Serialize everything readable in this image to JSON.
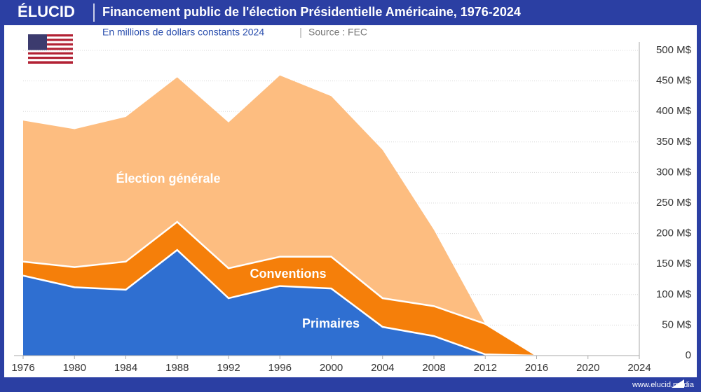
{
  "brand": "ÉLUCID",
  "footer": "www.elucid.media",
  "chart_data": {
    "type": "stacked-area",
    "title": "Financement public de l'élection Présidentielle Américaine, 1976-2024",
    "subtitle": "En millions de dollars constants 2024",
    "source": "Source : FEC",
    "x": [
      1976,
      1980,
      1984,
      1988,
      1992,
      1996,
      2000,
      2004,
      2008,
      2012,
      2016
    ],
    "series": [
      {
        "name": "Primaires",
        "color": "#2f6fd1",
        "values": [
          131,
          112,
          108,
          173,
          94,
          114,
          110,
          47,
          32,
          2,
          0
        ]
      },
      {
        "name": "Conventions",
        "color": "#f57f0a",
        "values": [
          23,
          33,
          46,
          46,
          49,
          48,
          52,
          47,
          49,
          50,
          0
        ]
      },
      {
        "name": "Élection générale",
        "color": "#fdbd80",
        "values": [
          231,
          226,
          237,
          237,
          239,
          297,
          263,
          243,
          125,
          0,
          0
        ]
      }
    ],
    "xlim": [
      1976,
      2024
    ],
    "xticks": [
      1976,
      1980,
      1984,
      1988,
      1992,
      1996,
      2000,
      2004,
      2008,
      2012,
      2016,
      2020,
      2024
    ],
    "ylim": [
      0,
      500
    ],
    "yticks": [
      0,
      {
        "value": 50,
        "label": "50 M$"
      },
      {
        "value": 100,
        "label": "100 M$"
      },
      {
        "value": 150,
        "label": "150 M$"
      },
      {
        "value": 200,
        "label": "200 M$"
      },
      {
        "value": 250,
        "label": "250 M$"
      },
      {
        "value": 300,
        "label": "300 M$"
      },
      {
        "value": 350,
        "label": "350 M$"
      },
      {
        "value": 400,
        "label": "400 M$"
      },
      {
        "value": 450,
        "label": "450 M$"
      },
      {
        "value": 500,
        "label": "500 M$"
      }
    ],
    "grid": true
  }
}
